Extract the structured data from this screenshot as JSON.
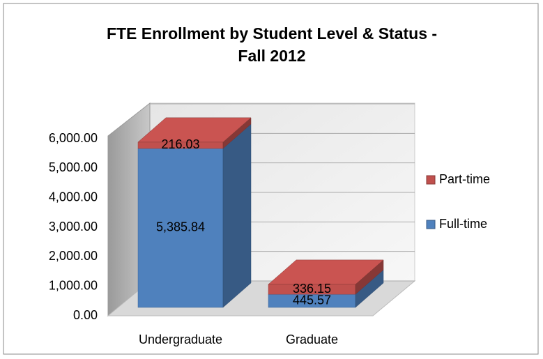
{
  "chart_data": {
    "type": "bar3d_stacked",
    "title": "FTE Enrollment by Student Level & Status - Fall 2012",
    "categories": [
      "Undergraduate",
      "Graduate"
    ],
    "series": [
      {
        "name": "Full-time",
        "color": "#4f81bd",
        "values": [
          5385.84,
          445.57
        ],
        "value_labels": [
          "5,385.84",
          "445.57"
        ]
      },
      {
        "name": "Part-time",
        "color": "#c0504d",
        "values": [
          216.03,
          336.15
        ],
        "value_labels": [
          "216.03",
          "336.15"
        ]
      }
    ],
    "ylim": [
      0,
      6000
    ],
    "yticks": [
      {
        "value": 0,
        "label": "0.00"
      },
      {
        "value": 1000,
        "label": "1,000.00"
      },
      {
        "value": 2000,
        "label": "2,000.00"
      },
      {
        "value": 3000,
        "label": "3,000.00"
      },
      {
        "value": 4000,
        "label": "4,000.00"
      },
      {
        "value": 5000,
        "label": "5,000.00"
      },
      {
        "value": 6000,
        "label": "6,000.00"
      }
    ],
    "grid": true,
    "legend": "right"
  }
}
